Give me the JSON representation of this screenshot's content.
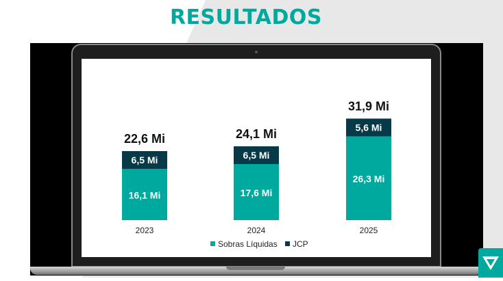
{
  "title": "RESULTADOS",
  "colors": {
    "accent": "#00a99d",
    "sobras": "#00a99d",
    "jcp": "#063a48",
    "background_shape": "#e8e8e8"
  },
  "logo": {
    "icon": "brand-logo-icon"
  },
  "chart_data": {
    "type": "bar",
    "stacked": true,
    "categories": [
      "2023",
      "2024",
      "2025"
    ],
    "series": [
      {
        "name": "Sobras Líquidas",
        "values": [
          16.1,
          17.6,
          26.3
        ],
        "labels": [
          "16,1 Mi",
          "17,6 Mi",
          "26,3 Mi"
        ],
        "color": "#00a99d"
      },
      {
        "name": "JCP",
        "values": [
          6.5,
          6.5,
          5.6
        ],
        "labels": [
          "6,5 Mi",
          "6,5 Mi",
          "5,6 Mi"
        ],
        "color": "#063a48"
      }
    ],
    "totals": [
      22.6,
      24.1,
      31.9
    ],
    "total_labels": [
      "22,6 Mi",
      "24,1 Mi",
      "31,9 Mi"
    ],
    "legend": {
      "position": "bottom"
    },
    "ylim": [
      0,
      32
    ]
  }
}
